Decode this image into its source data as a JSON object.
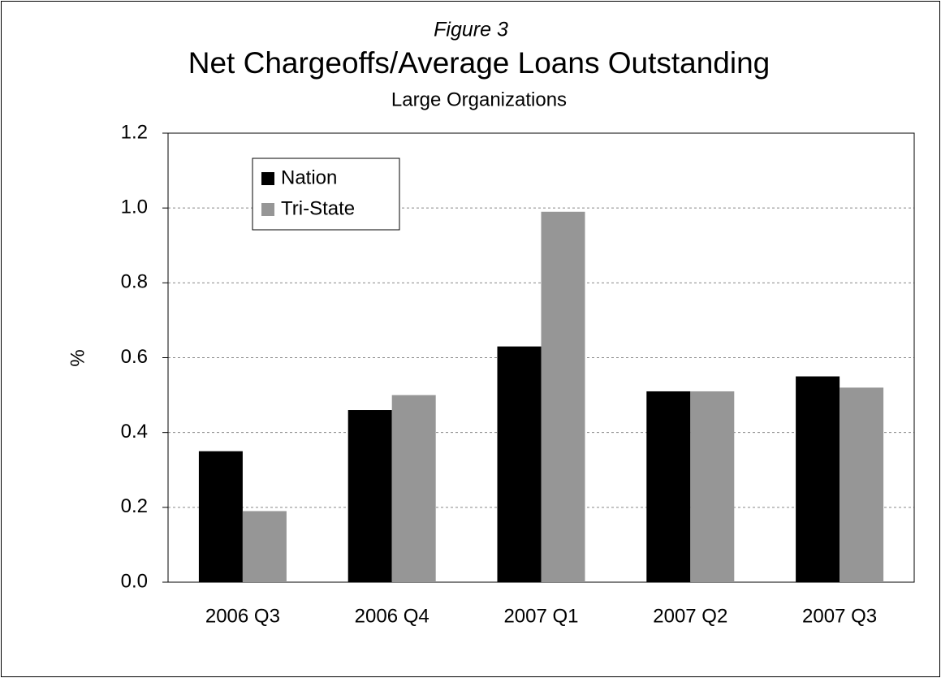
{
  "chart_data": {
    "type": "bar",
    "figure_label": "Figure 3",
    "title": "Net Chargeoffs/Average Loans Outstanding",
    "subtitle": "Large Organizations",
    "y_label": "%",
    "categories": [
      "2006 Q3",
      "2006 Q4",
      "2007 Q1",
      "2007 Q2",
      "2007 Q3"
    ],
    "series": [
      {
        "name": "Nation",
        "color": "#000000",
        "values": [
          0.35,
          0.46,
          0.63,
          0.51,
          0.55
        ]
      },
      {
        "name": "Tri-State",
        "color": "#969696",
        "values": [
          0.19,
          0.5,
          0.99,
          0.51,
          0.52
        ]
      }
    ],
    "ylim": [
      0,
      1.2
    ],
    "yticks": [
      {
        "value": 0,
        "label": "0.0"
      },
      0.2,
      0.4,
      0.6,
      0.8,
      {
        "value": 1,
        "label": "1.0"
      },
      1.2
    ],
    "grid": true,
    "legend": "upper left"
  }
}
